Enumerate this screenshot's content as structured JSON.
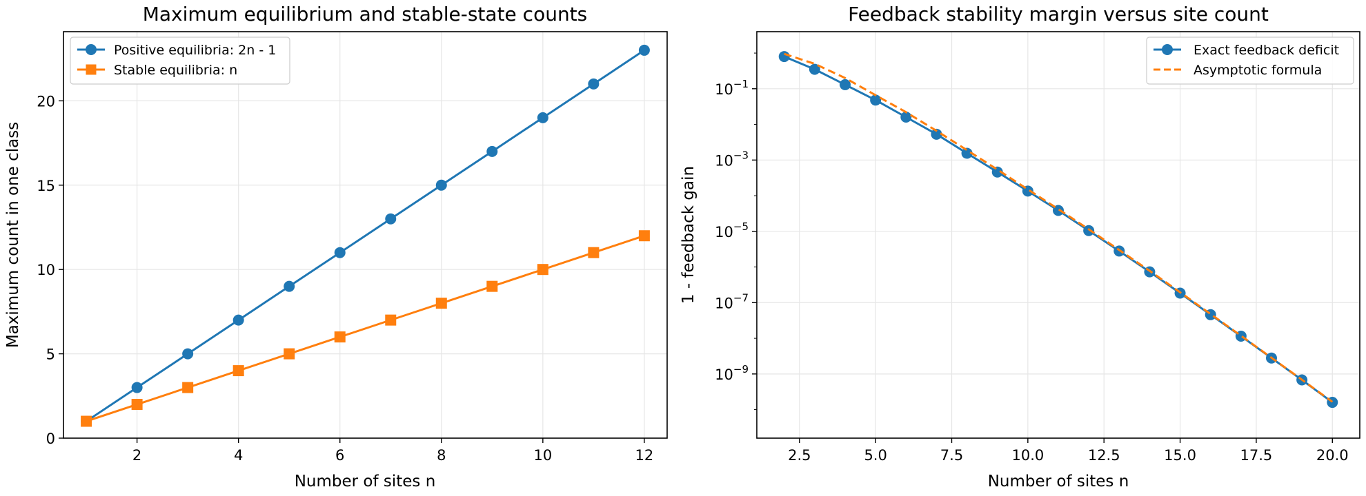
{
  "chart_data": [
    {
      "type": "line",
      "title": "Maximum equilibrium and stable-state counts",
      "xlabel": "Number of sites n",
      "ylabel": "Maximum count in one class",
      "xlim": [
        0.55,
        12.45
      ],
      "ylim": [
        0,
        24.1
      ],
      "xticks": [
        2,
        4,
        6,
        8,
        10,
        12
      ],
      "yticks": [
        0,
        5,
        10,
        15,
        20
      ],
      "xtick_labels": [
        "2",
        "4",
        "6",
        "8",
        "10",
        "12"
      ],
      "ytick_labels": [
        "0",
        "5",
        "10",
        "15",
        "20"
      ],
      "grid": true,
      "legend_position": "upper-left",
      "x": [
        1,
        2,
        3,
        4,
        5,
        6,
        7,
        8,
        9,
        10,
        11,
        12
      ],
      "series": [
        {
          "name": "Positive equilibria: 2n - 1",
          "color": "#1f77b4",
          "marker": "circle",
          "values": [
            1,
            3,
            5,
            7,
            9,
            11,
            13,
            15,
            17,
            19,
            21,
            23
          ]
        },
        {
          "name": "Stable equilibria: n",
          "color": "#ff7f0e",
          "marker": "square",
          "values": [
            1,
            2,
            3,
            4,
            5,
            6,
            7,
            8,
            9,
            10,
            11,
            12
          ]
        }
      ]
    },
    {
      "type": "line",
      "title": "Feedback stability margin versus site count",
      "xlabel": "Number of sites n",
      "ylabel": "1 - feedback gain",
      "yscale": "log",
      "xlim": [
        1.1,
        20.9
      ],
      "ylim_exponent": [
        -10.8,
        0.6
      ],
      "xticks": [
        2.5,
        5,
        7.5,
        10,
        12.5,
        15,
        17.5,
        20
      ],
      "xtick_labels": [
        "2.5",
        "5.0",
        "7.5",
        "10.0",
        "12.5",
        "15.0",
        "17.5",
        "20.0"
      ],
      "ytick_labels": [
        {
          "base": "10",
          "exp": "−1"
        },
        {
          "base": "10",
          "exp": "−3"
        },
        {
          "base": "10",
          "exp": "−5"
        },
        {
          "base": "10",
          "exp": "−7"
        },
        {
          "base": "10",
          "exp": "−9"
        }
      ],
      "ytick_values": [
        0.1,
        0.001,
        1e-05,
        1e-07,
        1e-09
      ],
      "grid": true,
      "legend_position": "upper-right",
      "x": [
        2,
        3,
        4,
        5,
        6,
        7,
        8,
        9,
        10,
        11,
        12,
        13,
        14,
        15,
        16,
        17,
        18,
        19,
        20
      ],
      "series": [
        {
          "name": "Exact feedback deficit",
          "color": "#1f77b4",
          "marker": "circle",
          "style": "solid",
          "values": [
            0.8,
            0.35,
            0.13,
            0.048,
            0.016,
            0.0053,
            0.00155,
            0.00046,
            0.000135,
            3.85e-05,
            1.05e-05,
            2.8e-06,
            7.3e-07,
            1.85e-07,
            4.6e-08,
            1.15e-08,
            2.8e-09,
            6.8e-10,
            1.6e-10
          ]
        },
        {
          "name": "Asymptotic formula",
          "color": "#ff7f0e",
          "marker": "none",
          "style": "dashed",
          "values": [
            0.95,
            0.5,
            0.2,
            0.066,
            0.022,
            0.0066,
            0.0019,
            0.00054,
            0.00015,
            4.2e-05,
            1.14e-05,
            3e-06,
            7.8e-07,
            1.95e-07,
            4.8e-08,
            1.18e-08,
            2.85e-09,
            6.9e-10,
            1.65e-10
          ]
        }
      ]
    }
  ]
}
